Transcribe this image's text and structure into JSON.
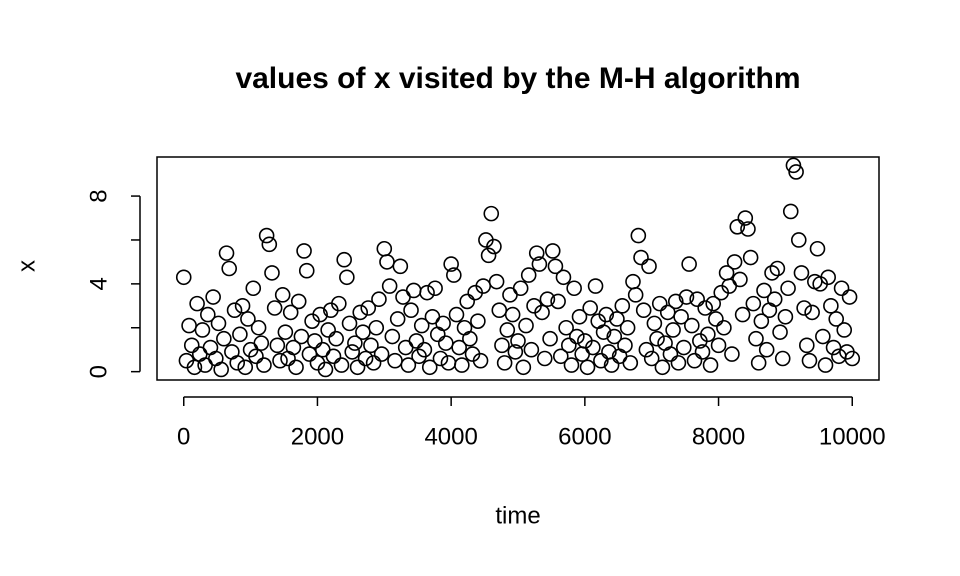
{
  "chart_data": {
    "type": "scatter",
    "title": "values of x visited by the M-H algorithm",
    "x_label": "time",
    "y_label": "x",
    "xlim": [
      -400,
      10400
    ],
    "ylim": [
      -0.38,
      9.78
    ],
    "xticks": [
      0,
      2000,
      4000,
      6000,
      8000,
      10000
    ],
    "yticks": [
      0,
      {
        "value": 2,
        "label": null
      },
      4,
      {
        "value": 6,
        "label": null
      },
      8
    ],
    "color": "#000000",
    "x": [
      0,
      40,
      80,
      120,
      160,
      200,
      240,
      280,
      320,
      360,
      400,
      440,
      480,
      520,
      560,
      600,
      640,
      680,
      720,
      760,
      800,
      840,
      880,
      920,
      960,
      1000,
      1040,
      1080,
      1120,
      1160,
      1200,
      1240,
      1280,
      1320,
      1360,
      1400,
      1440,
      1480,
      1520,
      1560,
      1600,
      1640,
      1680,
      1720,
      1760,
      1800,
      1840,
      1880,
      1920,
      1960,
      2000,
      2040,
      2080,
      2120,
      2160,
      2200,
      2240,
      2280,
      2320,
      2360,
      2400,
      2440,
      2480,
      2520,
      2560,
      2600,
      2640,
      2680,
      2720,
      2760,
      2800,
      2840,
      2880,
      2920,
      2960,
      3000,
      3040,
      3080,
      3120,
      3160,
      3200,
      3240,
      3280,
      3320,
      3360,
      3400,
      3440,
      3480,
      3520,
      3560,
      3600,
      3640,
      3680,
      3720,
      3760,
      3800,
      3840,
      3880,
      3920,
      3960,
      4000,
      4040,
      4080,
      4120,
      4160,
      4200,
      4240,
      4280,
      4320,
      4360,
      4400,
      4440,
      4480,
      4520,
      4560,
      4600,
      4640,
      4680,
      4720,
      4760,
      4800,
      4840,
      4880,
      4920,
      4960,
      5000,
      5040,
      5080,
      5120,
      5160,
      5200,
      5240,
      5280,
      5320,
      5360,
      5400,
      5440,
      5480,
      5520,
      5560,
      5600,
      5640,
      5680,
      5720,
      5760,
      5800,
      5840,
      5880,
      5920,
      5960,
      6000,
      6040,
      6080,
      6120,
      6160,
      6200,
      6240,
      6280,
      6320,
      6360,
      6400,
      6440,
      6480,
      6520,
      6560,
      6600,
      6640,
      6680,
      6720,
      6760,
      6800,
      6840,
      6880,
      6920,
      6960,
      7000,
      7040,
      7080,
      7120,
      7160,
      7200,
      7240,
      7280,
      7320,
      7360,
      7400,
      7440,
      7480,
      7520,
      7560,
      7600,
      7640,
      7680,
      7720,
      7760,
      7800,
      7840,
      7880,
      7920,
      7960,
      8000,
      8040,
      8080,
      8120,
      8160,
      8200,
      8240,
      8280,
      8320,
      8360,
      8400,
      8440,
      8480,
      8520,
      8560,
      8600,
      8640,
      8680,
      8720,
      8760,
      8800,
      8840,
      8880,
      8920,
      8960,
      9000,
      9040,
      9080,
      9120,
      9160,
      9200,
      9240,
      9280,
      9320,
      9360,
      9400,
      9440,
      9480,
      9520,
      9560,
      9600,
      9640,
      9680,
      9720,
      9760,
      9800,
      9840,
      9880,
      9920,
      9960,
      10000
    ],
    "values": [
      4.3,
      0.5,
      2.1,
      1.2,
      0.2,
      3.1,
      0.8,
      1.9,
      0.3,
      2.6,
      1.1,
      3.4,
      0.6,
      2.2,
      0.1,
      1.5,
      5.4,
      4.7,
      0.9,
      2.8,
      0.4,
      1.7,
      3.0,
      0.2,
      2.4,
      1.0,
      3.8,
      0.7,
      2.0,
      1.3,
      0.3,
      6.2,
      5.8,
      4.5,
      2.9,
      1.2,
      0.5,
      3.5,
      1.8,
      0.6,
      2.7,
      1.1,
      0.2,
      3.2,
      1.6,
      5.5,
      4.6,
      0.8,
      2.3,
      1.4,
      0.4,
      2.6,
      1.0,
      0.1,
      1.9,
      2.8,
      0.7,
      1.5,
      3.1,
      0.3,
      5.1,
      4.3,
      2.2,
      0.9,
      1.3,
      0.2,
      2.7,
      1.8,
      0.6,
      2.9,
      1.2,
      0.4,
      2.0,
      3.3,
      0.8,
      5.6,
      5.0,
      3.9,
      1.6,
      0.5,
      2.4,
      4.8,
      3.4,
      1.1,
      0.3,
      2.8,
      3.7,
      1.4,
      0.7,
      2.1,
      1.0,
      3.6,
      0.2,
      2.5,
      3.8,
      1.7,
      0.6,
      2.2,
      1.3,
      0.4,
      4.9,
      4.4,
      2.6,
      1.1,
      0.3,
      2.0,
      3.2,
      1.5,
      0.8,
      3.6,
      2.3,
      0.5,
      3.9,
      6.0,
      5.3,
      7.2,
      5.7,
      4.1,
      2.8,
      1.2,
      0.4,
      1.9,
      3.5,
      2.6,
      0.9,
      1.4,
      3.8,
      0.2,
      2.1,
      4.4,
      1.0,
      3.0,
      5.4,
      4.9,
      2.7,
      0.6,
      3.3,
      1.5,
      5.5,
      4.8,
      3.2,
      0.7,
      4.3,
      2.0,
      1.2,
      0.3,
      3.8,
      1.6,
      2.5,
      0.8,
      1.4,
      0.2,
      2.9,
      1.1,
      3.9,
      2.3,
      0.5,
      1.8,
      2.6,
      0.9,
      0.3,
      1.6,
      2.4,
      0.7,
      3.0,
      1.2,
      2.0,
      0.4,
      4.1,
      3.5,
      6.2,
      5.2,
      2.8,
      1.0,
      4.8,
      0.6,
      2.2,
      1.5,
      3.1,
      0.2,
      1.3,
      2.7,
      0.8,
      1.9,
      3.2,
      0.4,
      2.5,
      1.1,
      3.4,
      4.9,
      2.1,
      0.5,
      3.3,
      1.4,
      0.9,
      2.9,
      1.7,
      0.3,
      3.1,
      2.4,
      1.2,
      3.6,
      2.0,
      4.5,
      3.9,
      0.8,
      5.0,
      6.6,
      4.2,
      2.6,
      7.0,
      6.5,
      5.2,
      3.1,
      1.5,
      0.4,
      2.3,
      3.7,
      1.0,
      2.8,
      4.5,
      3.3,
      4.7,
      1.8,
      0.6,
      2.5,
      3.8,
      7.3,
      9.4,
      9.1,
      6.0,
      4.5,
      2.9,
      1.2,
      0.5,
      2.7,
      4.1,
      5.6,
      4.0,
      1.6,
      0.3,
      4.3,
      3.0,
      1.1,
      2.4,
      0.7,
      3.8,
      1.9,
      0.9,
      3.4,
      0.6
    ]
  }
}
